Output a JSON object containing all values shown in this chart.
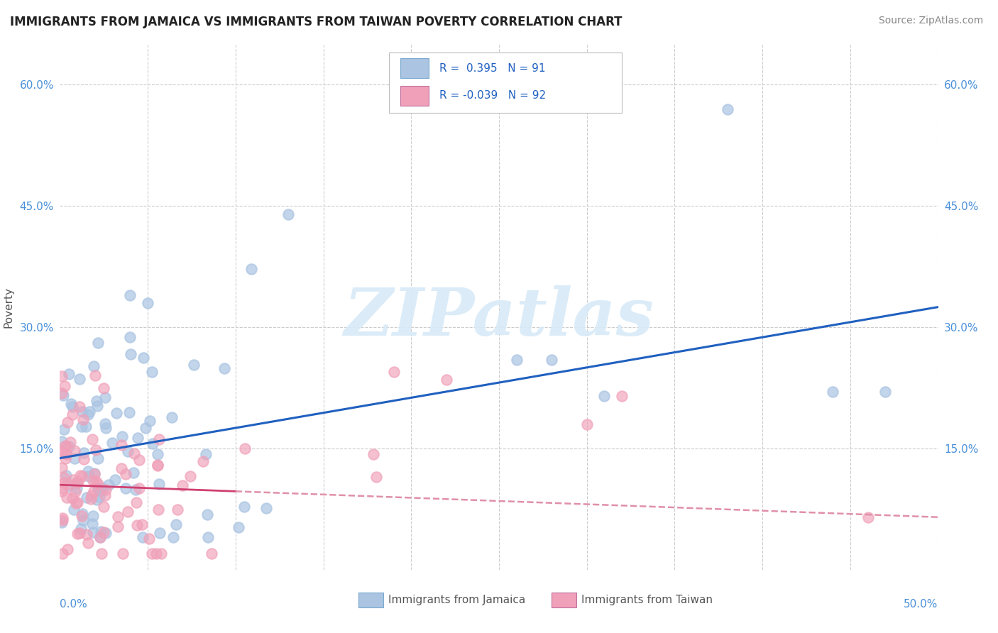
{
  "title": "IMMIGRANTS FROM JAMAICA VS IMMIGRANTS FROM TAIWAN POVERTY CORRELATION CHART",
  "source": "Source: ZipAtlas.com",
  "ylabel": "Poverty",
  "xlim": [
    0.0,
    0.5
  ],
  "ylim": [
    0.0,
    0.65
  ],
  "jamaica_R": 0.395,
  "jamaica_N": 91,
  "taiwan_R": -0.039,
  "taiwan_N": 92,
  "jamaica_color": "#aac4e2",
  "taiwan_color": "#f0a0b8",
  "jamaica_line_color": "#2060c0",
  "taiwan_line_color_solid": "#d04070",
  "taiwan_line_color_dash": "#e090a8",
  "background_color": "#ffffff",
  "watermark_text": "ZIPatlas",
  "watermark_color": "#d8eaf8",
  "title_color": "#222222",
  "source_color": "#888888",
  "tick_color": "#4a90d9",
  "ylabel_color": "#555555",
  "legend_box_color": "#ffffff",
  "legend_border_color": "#cccccc",
  "bottom_legend_text_color": "#555555",
  "grid_color": "#cccccc",
  "yticks": [
    0.15,
    0.3,
    0.45,
    0.6
  ],
  "ytick_labels": [
    "15.0%",
    "30.0%",
    "45.0%",
    "60.0%"
  ]
}
